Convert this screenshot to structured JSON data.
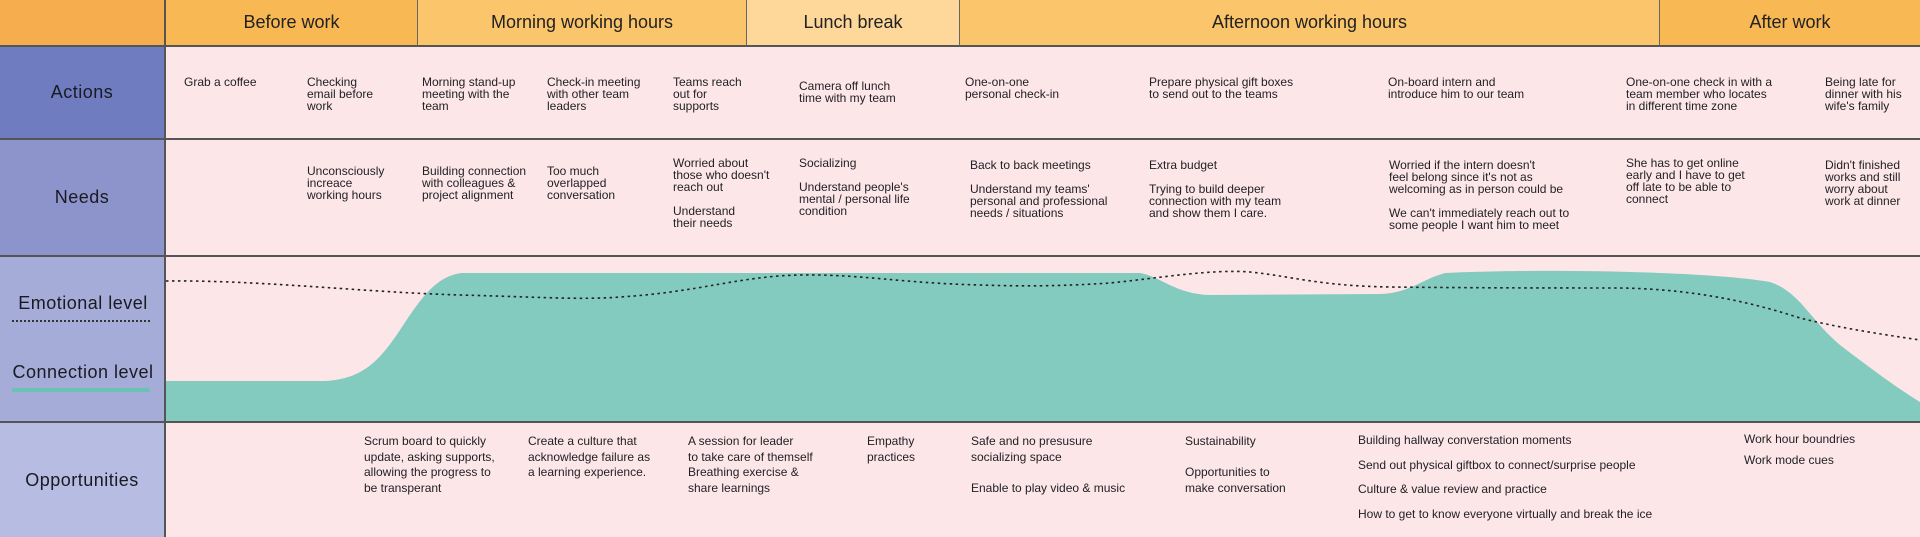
{
  "colors": {
    "corner": "#f5ad4e",
    "row_actions": "#6f7cc0",
    "row_needs": "#8c94cb",
    "row_levels": "#a5acd8",
    "row_opportunities": "#b7bce2",
    "grid_bg": "#fce6e8",
    "connection_fill": "#7cc9bd",
    "emotional_line": "#222222"
  },
  "phases": [
    {
      "label": "Before work",
      "color": "#f8b854"
    },
    {
      "label": "Morning working hours",
      "color": "#fbc66b"
    },
    {
      "label": "Lunch break",
      "color": "#fdd89a"
    },
    {
      "label": "Afternoon working hours",
      "color": "#fbc66b"
    },
    {
      "label": "After work",
      "color": "#f8b854"
    }
  ],
  "rows": {
    "actions": "Actions",
    "needs": "Needs",
    "emotional": "Emotional level",
    "connection": "Connection level",
    "opportunities": "Opportunities"
  },
  "actions": [
    "Grab a coffee",
    "Checking\nemail before\nwork",
    "Morning stand-up\nmeeting with the\nteam",
    "Check-in meeting\nwith other team\nleaders",
    "Teams reach\nout for\nsupports",
    "Camera off lunch\ntime with my team",
    "One-on-one\npersonal check-in",
    "Prepare physical gift boxes\nto send out to the teams",
    "On-board intern and\nintroduce him to our team",
    "One-on-one check in with a\nteam member who locates\nin different time zone",
    "Being late for\ndinner with his\nwife's family"
  ],
  "needs": [
    "Unconsciously\nincreace\nworking hours",
    "Building connection\nwith colleagues &\nproject alignment",
    "Too much\noverlapped\nconversation",
    "Worried about\nthose who doesn't\nreach out\n\nUnderstand\ntheir needs",
    "Socializing\n\nUnderstand people's\nmental / personal life\ncondition",
    "Back to back meetings\n\nUnderstand my teams'\npersonal and professional\nneeds / situations",
    "Extra budget\n\nTrying to build deeper\nconnection with my team\nand show them I care.",
    "Worried if the intern doesn't\nfeel belong since it's not as\nwelcoming as in person could be\n\nWe can't immediately reach out to\nsome people I want him to meet",
    "She has to get online\nearly and I have to get\noff late to be able to\nconnect",
    "Didn't finished\nworks and still\nworry about\nwork at dinner"
  ],
  "opportunities": [
    "Scrum board to quickly\nupdate, asking supports,\nallowing the progress to\nbe transperant",
    "Create a culture that\nacknowledge failure as\na learning experience.",
    "A session for leader\nto take care of themself\nBreathing exercise &\nshare learnings",
    "Empathy\npractices",
    "Safe and no presusure\nsocializing space\n\nEnable to play video & music",
    "Sustainability\n\nOpportunities to\nmake conversation",
    "Building hallway converstation moments\n\nSend out physical giftbox to connect/surprise people\n\nCulture & value review and practice\n\nHow to get to know everyone virtually and break the ice",
    "Work hour boundries\n\nWork mode cues"
  ]
}
